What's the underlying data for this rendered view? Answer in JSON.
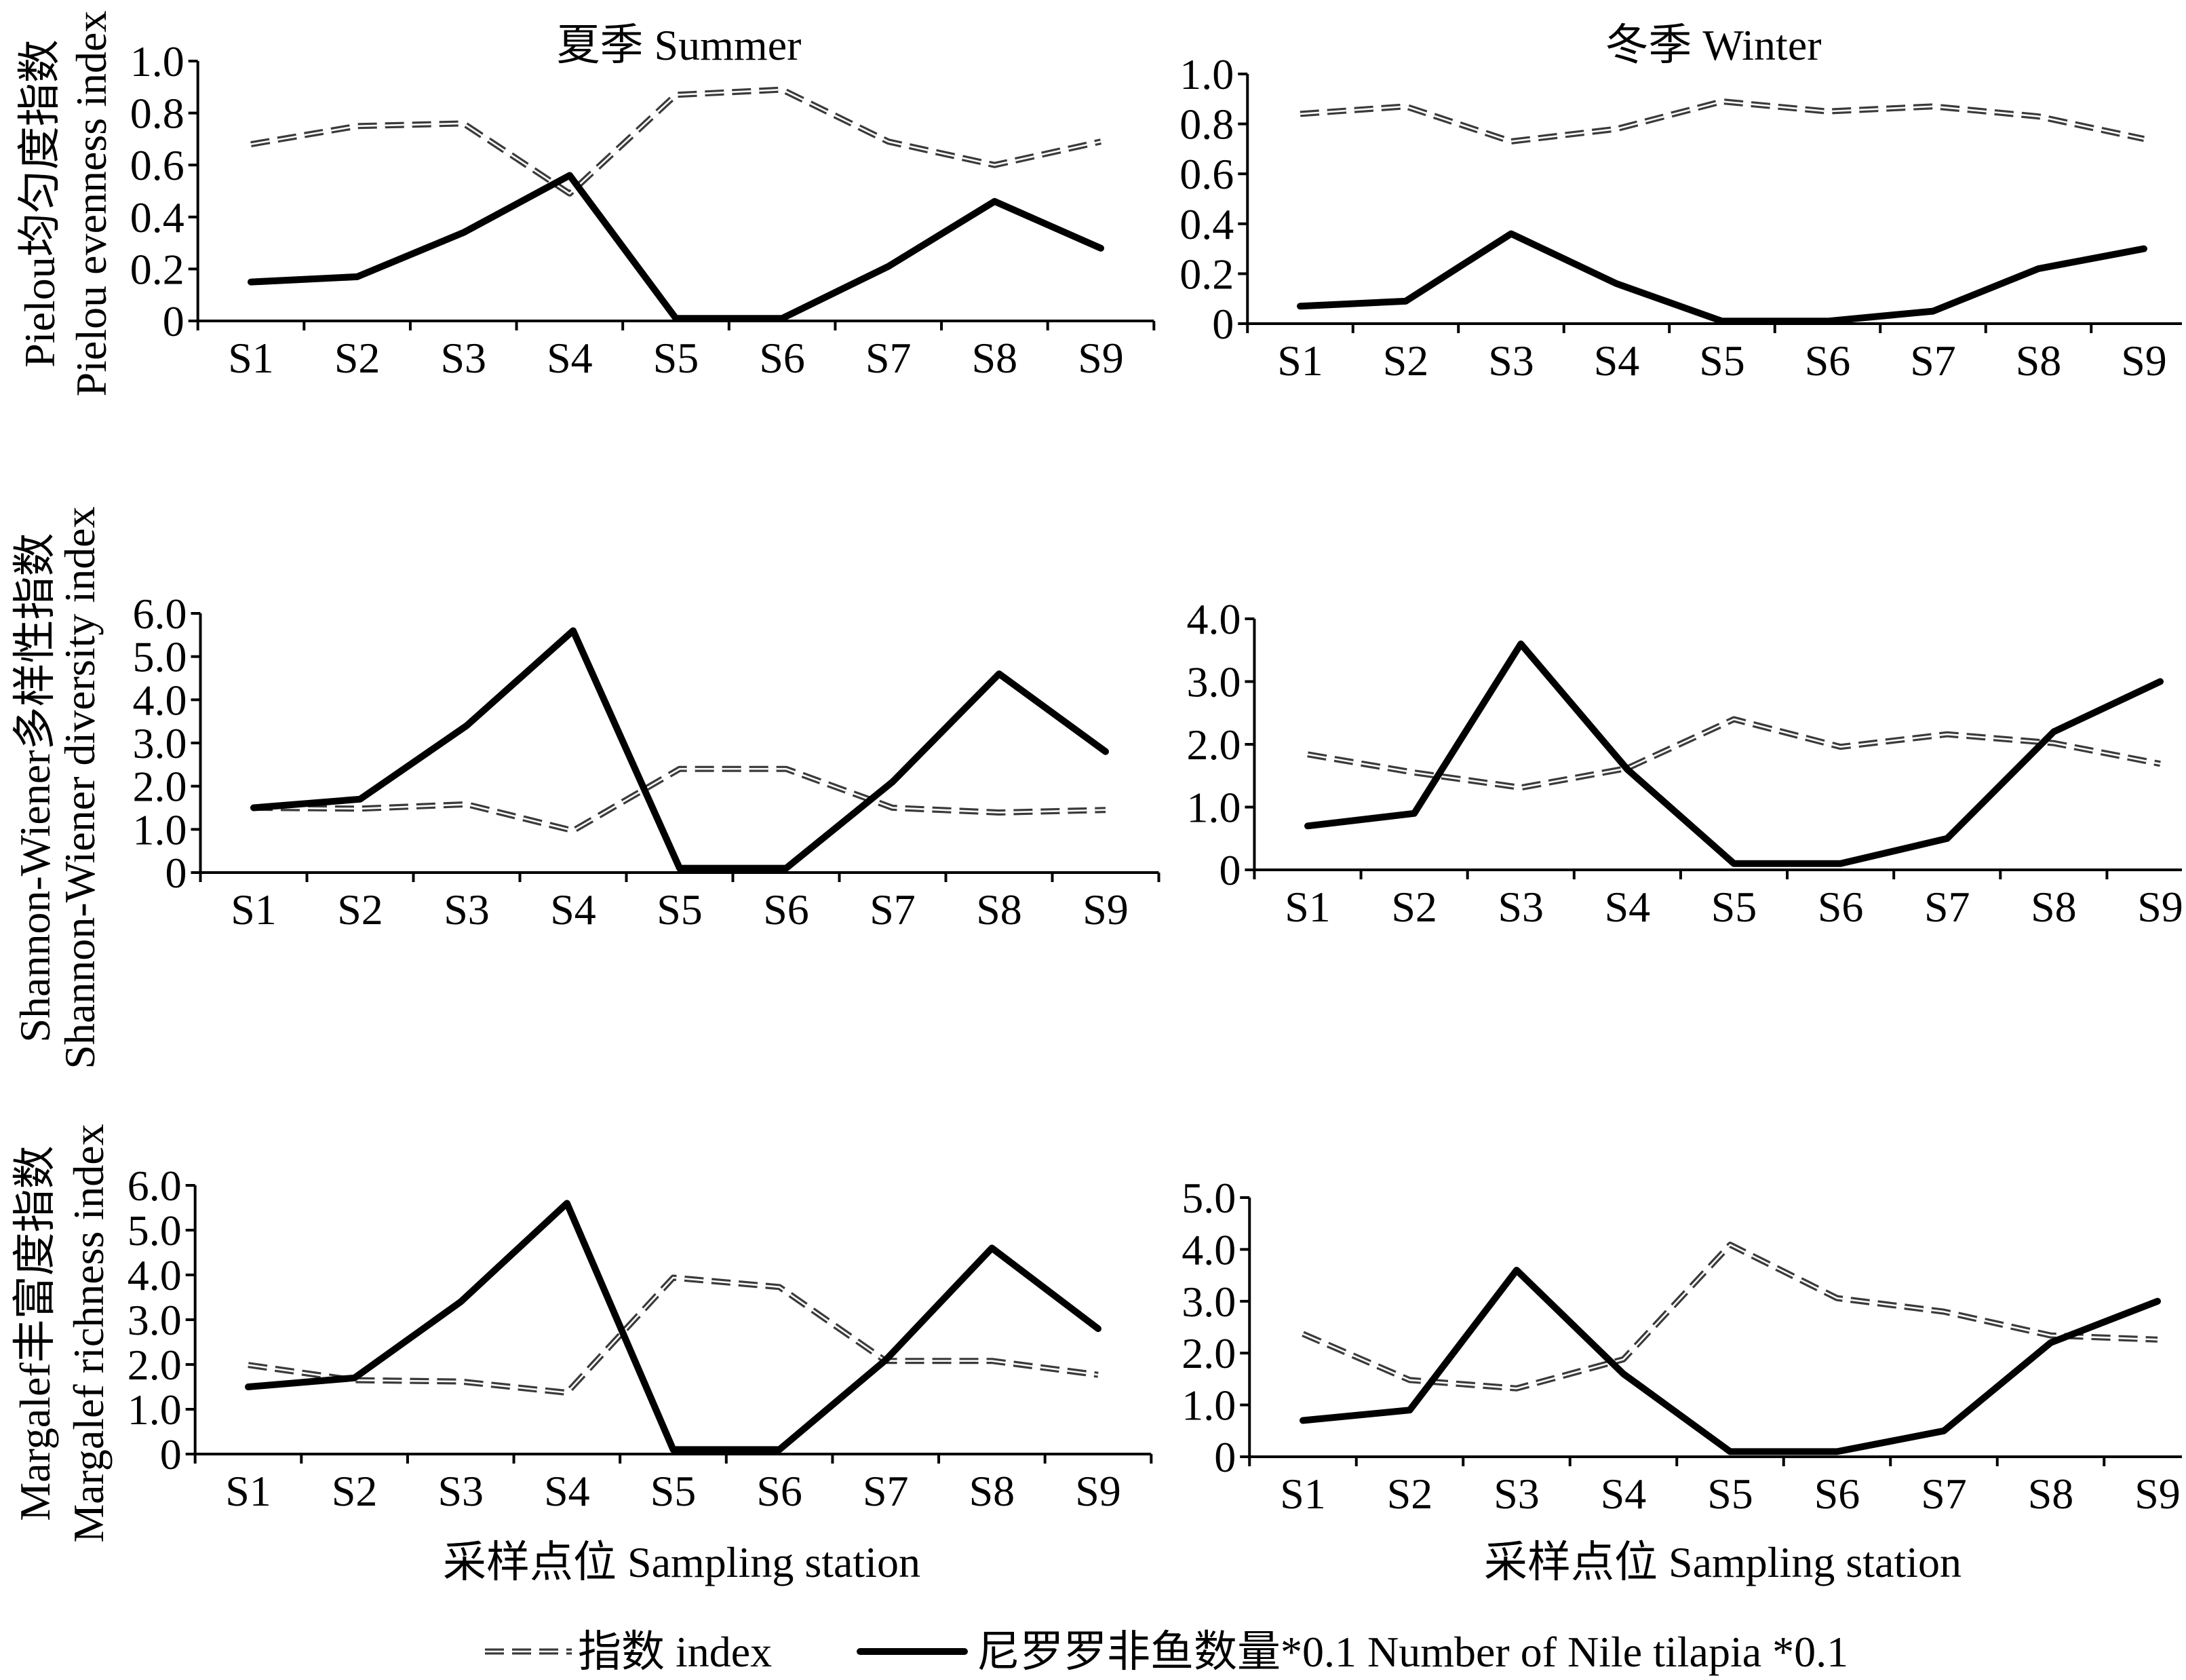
{
  "colors": {
    "index_line": "#3a3a3a",
    "tilapia_line": "#000000",
    "axis": "#000000",
    "background": "#ffffff"
  },
  "legend": {
    "position": "bottom",
    "entries": [
      {
        "label": "指数 index",
        "dashed": true
      },
      {
        "label": "尼罗罗非鱼数量*0.1 Number of Nile tilapia *0.1",
        "dashed": false
      }
    ]
  },
  "chart_data": [
    {
      "type": "line",
      "title": "夏季 Summer",
      "ylabel": [
        "Pielou均匀度指数",
        "Pielou evenness index"
      ],
      "categories": [
        "S1",
        "S2",
        "S3",
        "S4",
        "S5",
        "S6",
        "S7",
        "S8",
        "S9"
      ],
      "ylim": [
        0,
        1.0
      ],
      "y_ticks": [
        "0",
        "0.2",
        "0.4",
        "0.6",
        "0.8",
        "1.0"
      ],
      "grid": false,
      "series": [
        {
          "legend_index": 0,
          "dashed": true,
          "values": [
            0.68,
            0.75,
            0.76,
            0.49,
            0.87,
            0.89,
            0.69,
            0.6,
            0.69
          ]
        },
        {
          "legend_index": 1,
          "dashed": false,
          "values": [
            0.15,
            0.17,
            0.34,
            0.56,
            0.01,
            0.01,
            0.21,
            0.46,
            0.28
          ]
        }
      ]
    },
    {
      "type": "line",
      "title": "冬季 Winter",
      "categories": [
        "S1",
        "S2",
        "S3",
        "S4",
        "S5",
        "S6",
        "S7",
        "S8",
        "S9"
      ],
      "ylim": [
        0,
        1.0
      ],
      "y_ticks": [
        "0",
        "0.2",
        "0.4",
        "0.6",
        "0.8",
        "1.0"
      ],
      "grid": false,
      "series": [
        {
          "legend_index": 0,
          "dashed": true,
          "values": [
            0.84,
            0.87,
            0.73,
            0.78,
            0.89,
            0.85,
            0.87,
            0.83,
            0.74
          ]
        },
        {
          "legend_index": 1,
          "dashed": false,
          "values": [
            0.07,
            0.09,
            0.36,
            0.16,
            0.01,
            0.01,
            0.05,
            0.22,
            0.3
          ]
        }
      ]
    },
    {
      "type": "line",
      "ylabel": [
        "Shannon-Wiener多样性指数",
        "Shannon-Wiener diversity index"
      ],
      "categories": [
        "S1",
        "S2",
        "S3",
        "S4",
        "S5",
        "S6",
        "S7",
        "S8",
        "S9"
      ],
      "ylim": [
        0,
        6.0
      ],
      "y_ticks": [
        "0",
        "1.0",
        "2.0",
        "3.0",
        "4.0",
        "5.0",
        "6.0"
      ],
      "grid": false,
      "series": [
        {
          "legend_index": 0,
          "dashed": true,
          "values": [
            1.5,
            1.48,
            1.58,
            0.97,
            2.4,
            2.4,
            1.5,
            1.39,
            1.45
          ]
        },
        {
          "legend_index": 1,
          "dashed": false,
          "values": [
            1.5,
            1.7,
            3.4,
            5.6,
            0.1,
            0.1,
            2.1,
            4.6,
            2.8
          ]
        }
      ]
    },
    {
      "type": "line",
      "categories": [
        "S1",
        "S2",
        "S3",
        "S4",
        "S5",
        "S6",
        "S7",
        "S8",
        "S9"
      ],
      "ylim": [
        0,
        4.0
      ],
      "y_ticks": [
        "0",
        "1.0",
        "2.0",
        "3.0",
        "4.0"
      ],
      "grid": false,
      "series": [
        {
          "legend_index": 0,
          "dashed": true,
          "values": [
            1.84,
            1.55,
            1.31,
            1.62,
            2.4,
            1.96,
            2.16,
            2.02,
            1.69
          ]
        },
        {
          "legend_index": 1,
          "dashed": false,
          "values": [
            0.7,
            0.9,
            3.6,
            1.6,
            0.1,
            0.1,
            0.5,
            2.2,
            3.0
          ]
        }
      ]
    },
    {
      "type": "line",
      "ylabel": [
        "Margalef丰富度指数",
        "Margalef richness index"
      ],
      "xlabel": "采样点位 Sampling station",
      "categories": [
        "S1",
        "S2",
        "S3",
        "S4",
        "S5",
        "S6",
        "S7",
        "S8",
        "S9"
      ],
      "ylim": [
        0,
        6.0
      ],
      "y_ticks": [
        "0",
        "1.0",
        "2.0",
        "3.0",
        "4.0",
        "5.0",
        "6.0"
      ],
      "grid": false,
      "series": [
        {
          "legend_index": 0,
          "dashed": true,
          "values": [
            1.99,
            1.65,
            1.62,
            1.37,
            3.94,
            3.73,
            2.08,
            2.08,
            1.77
          ]
        },
        {
          "legend_index": 1,
          "dashed": false,
          "values": [
            1.5,
            1.7,
            3.4,
            5.6,
            0.1,
            0.1,
            2.1,
            4.6,
            2.8
          ]
        }
      ]
    },
    {
      "type": "line",
      "xlabel": "采样点位 Sampling station",
      "categories": [
        "S1",
        "S2",
        "S3",
        "S4",
        "S5",
        "S6",
        "S7",
        "S8",
        "S9"
      ],
      "ylim": [
        0,
        5.0
      ],
      "y_ticks": [
        "0",
        "1.0",
        "2.0",
        "3.0",
        "4.0",
        "5.0"
      ],
      "grid": false,
      "series": [
        {
          "legend_index": 0,
          "dashed": true,
          "values": [
            2.37,
            1.48,
            1.32,
            1.88,
            4.09,
            3.06,
            2.8,
            2.34,
            2.26
          ]
        },
        {
          "legend_index": 1,
          "dashed": false,
          "values": [
            0.7,
            0.9,
            3.6,
            1.6,
            0.1,
            0.1,
            0.5,
            2.2,
            3.0
          ]
        }
      ]
    }
  ]
}
